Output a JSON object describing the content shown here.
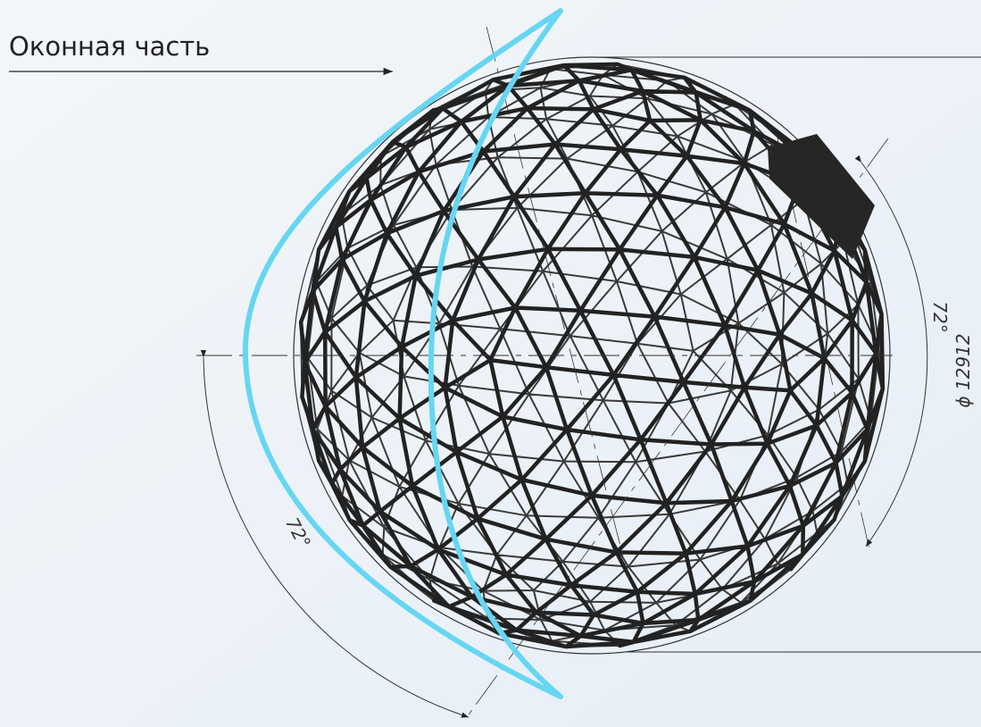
{
  "label": "Оконная часть",
  "dimensions": {
    "angle_right": "72°",
    "angle_left": "72°",
    "diameter": "ϕ 12912"
  }
}
